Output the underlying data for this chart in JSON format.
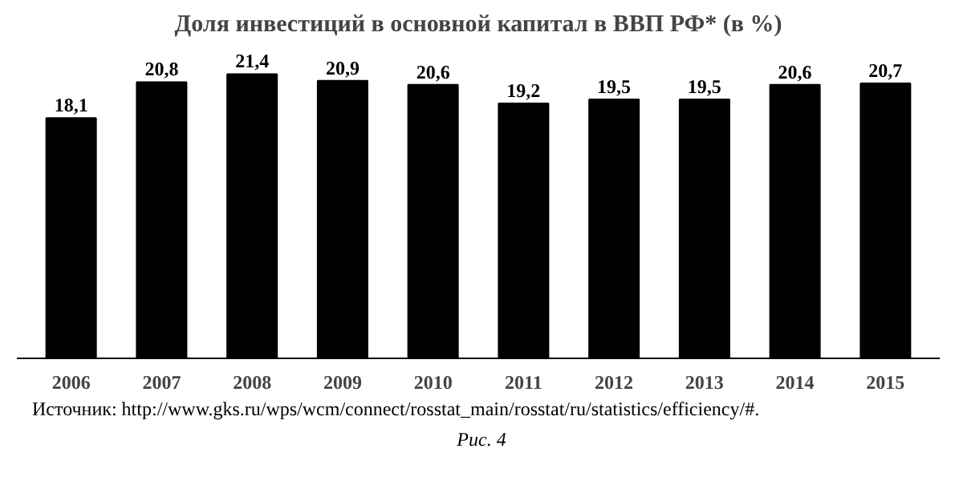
{
  "chart_data": {
    "type": "bar",
    "title": "Доля инвестиций в основной капитал в ВВП РФ* (в %)",
    "categories": [
      "2006",
      "2007",
      "2008",
      "2009",
      "2010",
      "2011",
      "2012",
      "2013",
      "2014",
      "2015"
    ],
    "values": [
      18.1,
      20.8,
      21.4,
      20.9,
      20.6,
      19.2,
      19.5,
      19.5,
      20.6,
      20.7
    ],
    "value_labels": [
      "18,1",
      "20,8",
      "21,4",
      "20,9",
      "20,6",
      "19,2",
      "19,5",
      "19,5",
      "20,6",
      "20,7"
    ],
    "color": "#000000",
    "grid": false,
    "tick_labels": "x",
    "annotations": [
      "Источник: http://www.gks.ru/wps/wcm/connect/rosstat_main/rosstat/ru/statistics/efficiency/#.",
      "Рис. 4"
    ]
  }
}
